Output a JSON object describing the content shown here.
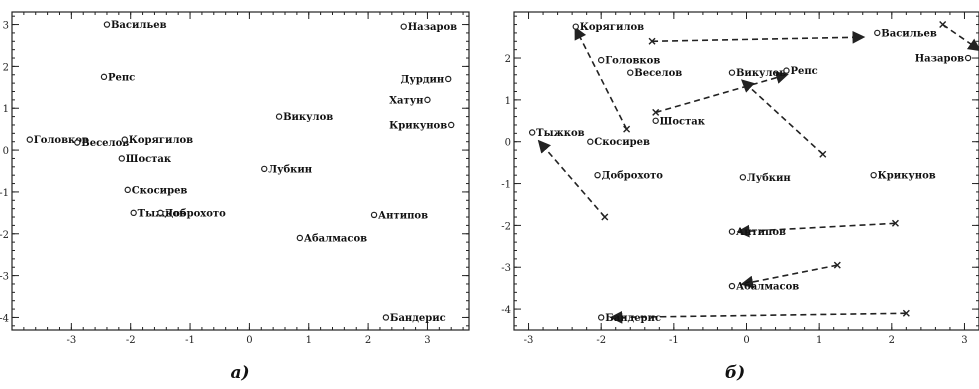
{
  "captions": [
    "а)",
    "б)"
  ],
  "chart_data": [
    {
      "type": "scatter",
      "title": "",
      "xlabel": "",
      "ylabel": "",
      "xlim": [
        -4,
        3.7
      ],
      "ylim": [
        -4.3,
        3.3
      ],
      "xticks": [
        -3,
        -2,
        -1,
        0,
        1,
        2,
        3
      ],
      "yticks": [
        3,
        2,
        1,
        0,
        -1,
        -2,
        -3,
        -4
      ],
      "points": [
        {
          "label": "Васильев",
          "x": -2.4,
          "y": 3.0
        },
        {
          "label": "Назаров",
          "x": 2.6,
          "y": 2.95
        },
        {
          "label": "Репс",
          "x": -2.45,
          "y": 1.75
        },
        {
          "label": "Дурдин",
          "x": 3.35,
          "y": 1.7
        },
        {
          "label": "Хатун",
          "x": 3.0,
          "y": 1.2
        },
        {
          "label": "Викулов",
          "x": 0.5,
          "y": 0.8
        },
        {
          "label": "Крикунов",
          "x": 3.4,
          "y": 0.6
        },
        {
          "label": "Головков",
          "x": -3.7,
          "y": 0.25
        },
        {
          "label": "Веселов",
          "x": -2.9,
          "y": 0.18
        },
        {
          "label": "Корягилов",
          "x": -2.1,
          "y": 0.25
        },
        {
          "label": "Шостак",
          "x": -2.15,
          "y": -0.2
        },
        {
          "label": "Лубкин",
          "x": 0.25,
          "y": -0.45
        },
        {
          "label": "Скосирев",
          "x": -2.05,
          "y": -0.95
        },
        {
          "label": "Тыжков",
          "x": -1.95,
          "y": -1.5
        },
        {
          "label": "Доброхото",
          "x": -1.5,
          "y": -1.5
        },
        {
          "label": "Антипов",
          "x": 2.1,
          "y": -1.55
        },
        {
          "label": "Абалмасов",
          "x": 0.85,
          "y": -2.1
        },
        {
          "label": "Бандерис",
          "x": 2.3,
          "y": -4.0
        }
      ]
    },
    {
      "type": "scatter",
      "title": "",
      "xlabel": "",
      "ylabel": "",
      "xlim": [
        -3.2,
        3.2
      ],
      "ylim": [
        -4.5,
        3.1
      ],
      "xticks": [
        -3,
        -2,
        -1,
        0,
        1,
        2,
        3
      ],
      "yticks": [
        2,
        1,
        0,
        -1,
        -2,
        -3,
        -4
      ],
      "points": [
        {
          "label": "Корягилов",
          "x": -2.35,
          "y": 2.75
        },
        {
          "label": "Васильев",
          "x": 1.8,
          "y": 2.6
        },
        {
          "label": "Назаров",
          "x": 3.05,
          "y": 2.0
        },
        {
          "label": "Головков",
          "x": -2.0,
          "y": 1.95
        },
        {
          "label": "Веселов",
          "x": -1.6,
          "y": 1.65
        },
        {
          "label": "Викулов",
          "x": -0.2,
          "y": 1.65
        },
        {
          "label": "Репс",
          "x": 0.55,
          "y": 1.7
        },
        {
          "label": "Шостак",
          "x": -1.25,
          "y": 0.5
        },
        {
          "label": "Тыжков",
          "x": -2.95,
          "y": 0.22
        },
        {
          "label": "Скосирев",
          "x": -2.15,
          "y": 0.0
        },
        {
          "label": "Доброхото",
          "x": -2.05,
          "y": -0.8
        },
        {
          "label": "Лубкин",
          "x": -0.05,
          "y": -0.85
        },
        {
          "label": "Крикунов",
          "x": 1.75,
          "y": -0.8
        },
        {
          "label": "Антипов",
          "x": -0.2,
          "y": -2.15
        },
        {
          "label": "Абалмасов",
          "x": -0.2,
          "y": -3.45
        },
        {
          "label": "Бандерис",
          "x": -2.0,
          "y": -4.2
        }
      ],
      "arrows": [
        {
          "from": [
            -1.3,
            2.4
          ],
          "to": [
            1.6,
            2.5
          ]
        },
        {
          "from": [
            -1.65,
            0.3
          ],
          "to": [
            -2.35,
            2.7
          ]
        },
        {
          "from": [
            2.7,
            2.8
          ],
          "to": [
            3.2,
            2.2
          ]
        },
        {
          "from": [
            -1.25,
            0.7
          ],
          "to": [
            0.55,
            1.6
          ]
        },
        {
          "from": [
            1.05,
            -0.3
          ],
          "to": [
            -0.05,
            1.45
          ]
        },
        {
          "from": [
            -1.95,
            -1.8
          ],
          "to": [
            -2.85,
            0.0
          ]
        },
        {
          "from": [
            2.05,
            -1.95
          ],
          "to": [
            -0.1,
            -2.15
          ]
        },
        {
          "from": [
            1.25,
            -2.95
          ],
          "to": [
            -0.05,
            -3.4
          ]
        },
        {
          "from": [
            2.2,
            -4.1
          ],
          "to": [
            -1.85,
            -4.2
          ]
        }
      ]
    }
  ]
}
